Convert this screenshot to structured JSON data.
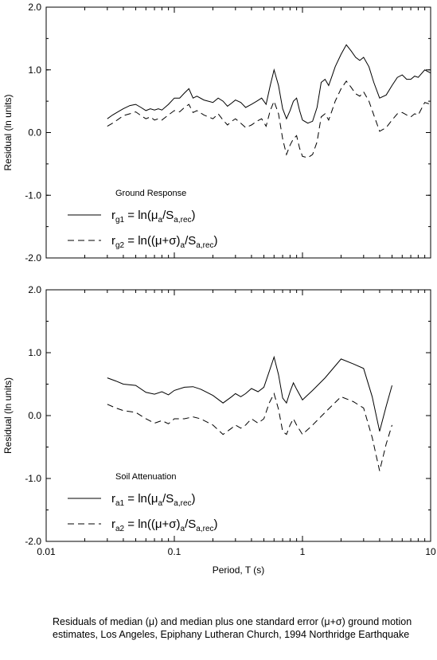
{
  "chart_data": [
    {
      "type": "line",
      "title": "",
      "ylabel": "Residual (ln units)",
      "xlabel": "",
      "xscale": "log",
      "xlim": [
        0.01,
        10
      ],
      "ylim": [
        -2.0,
        2.0
      ],
      "yticks": [
        "-2.0",
        "-1.0",
        "0.0",
        "1.0",
        "2.0"
      ],
      "grid": false,
      "legend_title": "Ground Response",
      "legend_position": "bottom-left",
      "series": [
        {
          "label_main": "r",
          "label_sub": "g1",
          "label_expr": " = ln(μ",
          "label_expr_sub": "a",
          "label_expr2": "/S",
          "label_expr2_sub": "a,rec",
          "label_close": ")",
          "style": "solid",
          "points": [
            [
              0.03,
              0.22
            ],
            [
              0.033,
              0.28
            ],
            [
              0.037,
              0.34
            ],
            [
              0.04,
              0.38
            ],
            [
              0.045,
              0.43
            ],
            [
              0.05,
              0.45
            ],
            [
              0.055,
              0.4
            ],
            [
              0.06,
              0.35
            ],
            [
              0.065,
              0.38
            ],
            [
              0.07,
              0.36
            ],
            [
              0.075,
              0.38
            ],
            [
              0.08,
              0.36
            ],
            [
              0.09,
              0.45
            ],
            [
              0.1,
              0.55
            ],
            [
              0.11,
              0.55
            ],
            [
              0.12,
              0.63
            ],
            [
              0.13,
              0.7
            ],
            [
              0.14,
              0.55
            ],
            [
              0.15,
              0.58
            ],
            [
              0.17,
              0.52
            ],
            [
              0.2,
              0.48
            ],
            [
              0.22,
              0.55
            ],
            [
              0.24,
              0.5
            ],
            [
              0.26,
              0.42
            ],
            [
              0.28,
              0.47
            ],
            [
              0.3,
              0.52
            ],
            [
              0.33,
              0.48
            ],
            [
              0.36,
              0.4
            ],
            [
              0.4,
              0.45
            ],
            [
              0.44,
              0.5
            ],
            [
              0.48,
              0.55
            ],
            [
              0.52,
              0.45
            ],
            [
              0.56,
              0.75
            ],
            [
              0.6,
              1.0
            ],
            [
              0.65,
              0.75
            ],
            [
              0.7,
              0.38
            ],
            [
              0.75,
              0.22
            ],
            [
              0.8,
              0.35
            ],
            [
              0.85,
              0.5
            ],
            [
              0.9,
              0.55
            ],
            [
              0.95,
              0.35
            ],
            [
              1.0,
              0.2
            ],
            [
              1.1,
              0.15
            ],
            [
              1.2,
              0.18
            ],
            [
              1.3,
              0.4
            ],
            [
              1.4,
              0.8
            ],
            [
              1.5,
              0.85
            ],
            [
              1.6,
              0.75
            ],
            [
              1.7,
              0.9
            ],
            [
              1.8,
              1.05
            ],
            [
              2.0,
              1.25
            ],
            [
              2.2,
              1.4
            ],
            [
              2.4,
              1.3
            ],
            [
              2.6,
              1.2
            ],
            [
              2.8,
              1.15
            ],
            [
              3.0,
              1.2
            ],
            [
              3.3,
              1.05
            ],
            [
              3.6,
              0.8
            ],
            [
              4.0,
              0.55
            ],
            [
              4.5,
              0.6
            ],
            [
              5.0,
              0.75
            ],
            [
              5.5,
              0.88
            ],
            [
              6.0,
              0.92
            ],
            [
              6.5,
              0.85
            ],
            [
              7.0,
              0.85
            ],
            [
              7.5,
              0.9
            ],
            [
              8.0,
              0.88
            ],
            [
              9.0,
              1.0
            ],
            [
              10.0,
              0.95
            ]
          ]
        },
        {
          "label_main": "r",
          "label_sub": "g2",
          "label_expr": " = ln((μ+σ)",
          "label_expr_sub": "a",
          "label_expr2": "/S",
          "label_expr2_sub": "a,rec",
          "label_close": ")",
          "style": "dashed",
          "points": [
            [
              0.03,
              0.1
            ],
            [
              0.033,
              0.15
            ],
            [
              0.037,
              0.22
            ],
            [
              0.04,
              0.27
            ],
            [
              0.045,
              0.3
            ],
            [
              0.05,
              0.33
            ],
            [
              0.055,
              0.27
            ],
            [
              0.06,
              0.22
            ],
            [
              0.065,
              0.25
            ],
            [
              0.07,
              0.2
            ],
            [
              0.075,
              0.22
            ],
            [
              0.08,
              0.2
            ],
            [
              0.09,
              0.28
            ],
            [
              0.1,
              0.35
            ],
            [
              0.11,
              0.33
            ],
            [
              0.12,
              0.4
            ],
            [
              0.13,
              0.45
            ],
            [
              0.14,
              0.32
            ],
            [
              0.15,
              0.35
            ],
            [
              0.17,
              0.28
            ],
            [
              0.2,
              0.22
            ],
            [
              0.22,
              0.3
            ],
            [
              0.24,
              0.2
            ],
            [
              0.26,
              0.12
            ],
            [
              0.28,
              0.18
            ],
            [
              0.3,
              0.22
            ],
            [
              0.33,
              0.15
            ],
            [
              0.36,
              0.08
            ],
            [
              0.4,
              0.12
            ],
            [
              0.44,
              0.18
            ],
            [
              0.48,
              0.22
            ],
            [
              0.52,
              0.1
            ],
            [
              0.56,
              0.35
            ],
            [
              0.6,
              0.5
            ],
            [
              0.65,
              0.3
            ],
            [
              0.7,
              -0.1
            ],
            [
              0.75,
              -0.35
            ],
            [
              0.8,
              -0.2
            ],
            [
              0.85,
              -0.1
            ],
            [
              0.9,
              -0.05
            ],
            [
              0.95,
              -0.25
            ],
            [
              1.0,
              -0.38
            ],
            [
              1.1,
              -0.4
            ],
            [
              1.2,
              -0.35
            ],
            [
              1.3,
              -0.15
            ],
            [
              1.4,
              0.25
            ],
            [
              1.5,
              0.3
            ],
            [
              1.6,
              0.2
            ],
            [
              1.7,
              0.35
            ],
            [
              1.8,
              0.5
            ],
            [
              2.0,
              0.7
            ],
            [
              2.2,
              0.82
            ],
            [
              2.4,
              0.72
            ],
            [
              2.6,
              0.62
            ],
            [
              2.8,
              0.58
            ],
            [
              3.0,
              0.65
            ],
            [
              3.3,
              0.5
            ],
            [
              3.6,
              0.28
            ],
            [
              4.0,
              0.02
            ],
            [
              4.5,
              0.08
            ],
            [
              5.0,
              0.2
            ],
            [
              5.5,
              0.3
            ],
            [
              6.0,
              0.32
            ],
            [
              6.5,
              0.28
            ],
            [
              7.0,
              0.25
            ],
            [
              7.5,
              0.3
            ],
            [
              8.0,
              0.28
            ],
            [
              9.0,
              0.48
            ],
            [
              10.0,
              0.45
            ]
          ]
        }
      ]
    },
    {
      "type": "line",
      "title": "",
      "ylabel": "Residual (ln units)",
      "xlabel": "Period, T (s)",
      "xscale": "log",
      "xlim": [
        0.01,
        10
      ],
      "ylim": [
        -2.0,
        2.0
      ],
      "yticks": [
        "-2.0",
        "-1.0",
        "0.0",
        "1.0",
        "2.0"
      ],
      "xticks": [
        "0.01",
        "0.1",
        "1",
        "10"
      ],
      "grid": false,
      "legend_title": "Soil Attenuation",
      "legend_position": "bottom-left",
      "series": [
        {
          "label_main": "r",
          "label_sub": "a1",
          "label_expr": " = ln(μ",
          "label_expr_sub": "a",
          "label_expr2": "/S",
          "label_expr2_sub": "a,rec",
          "label_close": ")",
          "style": "solid",
          "points": [
            [
              0.03,
              0.6
            ],
            [
              0.035,
              0.55
            ],
            [
              0.04,
              0.5
            ],
            [
              0.05,
              0.48
            ],
            [
              0.06,
              0.37
            ],
            [
              0.07,
              0.34
            ],
            [
              0.08,
              0.38
            ],
            [
              0.09,
              0.33
            ],
            [
              0.1,
              0.4
            ],
            [
              0.12,
              0.45
            ],
            [
              0.14,
              0.46
            ],
            [
              0.16,
              0.42
            ],
            [
              0.2,
              0.32
            ],
            [
              0.24,
              0.2
            ],
            [
              0.28,
              0.3
            ],
            [
              0.3,
              0.35
            ],
            [
              0.33,
              0.3
            ],
            [
              0.36,
              0.35
            ],
            [
              0.4,
              0.43
            ],
            [
              0.45,
              0.38
            ],
            [
              0.5,
              0.45
            ],
            [
              0.55,
              0.7
            ],
            [
              0.6,
              0.93
            ],
            [
              0.65,
              0.65
            ],
            [
              0.7,
              0.28
            ],
            [
              0.75,
              0.2
            ],
            [
              0.8,
              0.38
            ],
            [
              0.85,
              0.52
            ],
            [
              0.9,
              0.42
            ],
            [
              1.0,
              0.25
            ],
            [
              1.2,
              0.4
            ],
            [
              1.5,
              0.6
            ],
            [
              2.0,
              0.9
            ],
            [
              2.5,
              0.82
            ],
            [
              3.0,
              0.75
            ],
            [
              3.5,
              0.3
            ],
            [
              4.0,
              -0.25
            ],
            [
              4.5,
              0.15
            ],
            [
              5.0,
              0.48
            ]
          ]
        },
        {
          "label_main": "r",
          "label_sub": "a2",
          "label_expr": " = ln((μ+σ)",
          "label_expr_sub": "a",
          "label_expr2": "/S",
          "label_expr2_sub": "a,rec",
          "label_close": ")",
          "style": "dashed",
          "points": [
            [
              0.03,
              0.18
            ],
            [
              0.035,
              0.12
            ],
            [
              0.04,
              0.08
            ],
            [
              0.05,
              0.05
            ],
            [
              0.06,
              -0.05
            ],
            [
              0.07,
              -0.12
            ],
            [
              0.08,
              -0.08
            ],
            [
              0.09,
              -0.13
            ],
            [
              0.1,
              -0.05
            ],
            [
              0.12,
              -0.05
            ],
            [
              0.14,
              -0.02
            ],
            [
              0.16,
              -0.05
            ],
            [
              0.2,
              -0.15
            ],
            [
              0.24,
              -0.3
            ],
            [
              0.28,
              -0.2
            ],
            [
              0.3,
              -0.15
            ],
            [
              0.33,
              -0.2
            ],
            [
              0.36,
              -0.15
            ],
            [
              0.4,
              -0.05
            ],
            [
              0.45,
              -0.12
            ],
            [
              0.5,
              -0.05
            ],
            [
              0.55,
              0.2
            ],
            [
              0.6,
              0.35
            ],
            [
              0.65,
              0.1
            ],
            [
              0.7,
              -0.25
            ],
            [
              0.75,
              -0.3
            ],
            [
              0.8,
              -0.15
            ],
            [
              0.85,
              -0.05
            ],
            [
              0.9,
              -0.15
            ],
            [
              1.0,
              -0.3
            ],
            [
              1.2,
              -0.15
            ],
            [
              1.5,
              0.05
            ],
            [
              2.0,
              0.3
            ],
            [
              2.5,
              0.22
            ],
            [
              3.0,
              0.12
            ],
            [
              3.5,
              -0.35
            ],
            [
              4.0,
              -0.88
            ],
            [
              4.5,
              -0.45
            ],
            [
              5.0,
              -0.15
            ]
          ]
        }
      ]
    }
  ],
  "caption": "Residuals of median (μ) and median plus one standard error (μ+σ) ground motion estimates, Los Angeles, Epiphany Lutheran Church, 1994 Northridge Earthquake"
}
